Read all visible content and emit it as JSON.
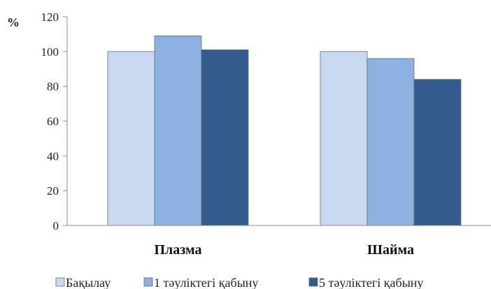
{
  "chart_data": {
    "type": "bar",
    "ylabel": "%",
    "ylim": [
      0,
      120
    ],
    "yticks": [
      0,
      20,
      40,
      60,
      80,
      100,
      120
    ],
    "categories": [
      "Плазма",
      "Шайма"
    ],
    "series": [
      {
        "name": "Бақылау",
        "values": [
          100,
          100
        ],
        "color": "#c9d9f2"
      },
      {
        "name": "1 тәуліктегі қабыну",
        "values": [
          109,
          96
        ],
        "color": "#8db1e0"
      },
      {
        "name": "5 тәуліктегі қабыну",
        "values": [
          101,
          84
        ],
        "color": "#335b8c"
      }
    ],
    "legend_position": "bottom",
    "grid": false
  }
}
